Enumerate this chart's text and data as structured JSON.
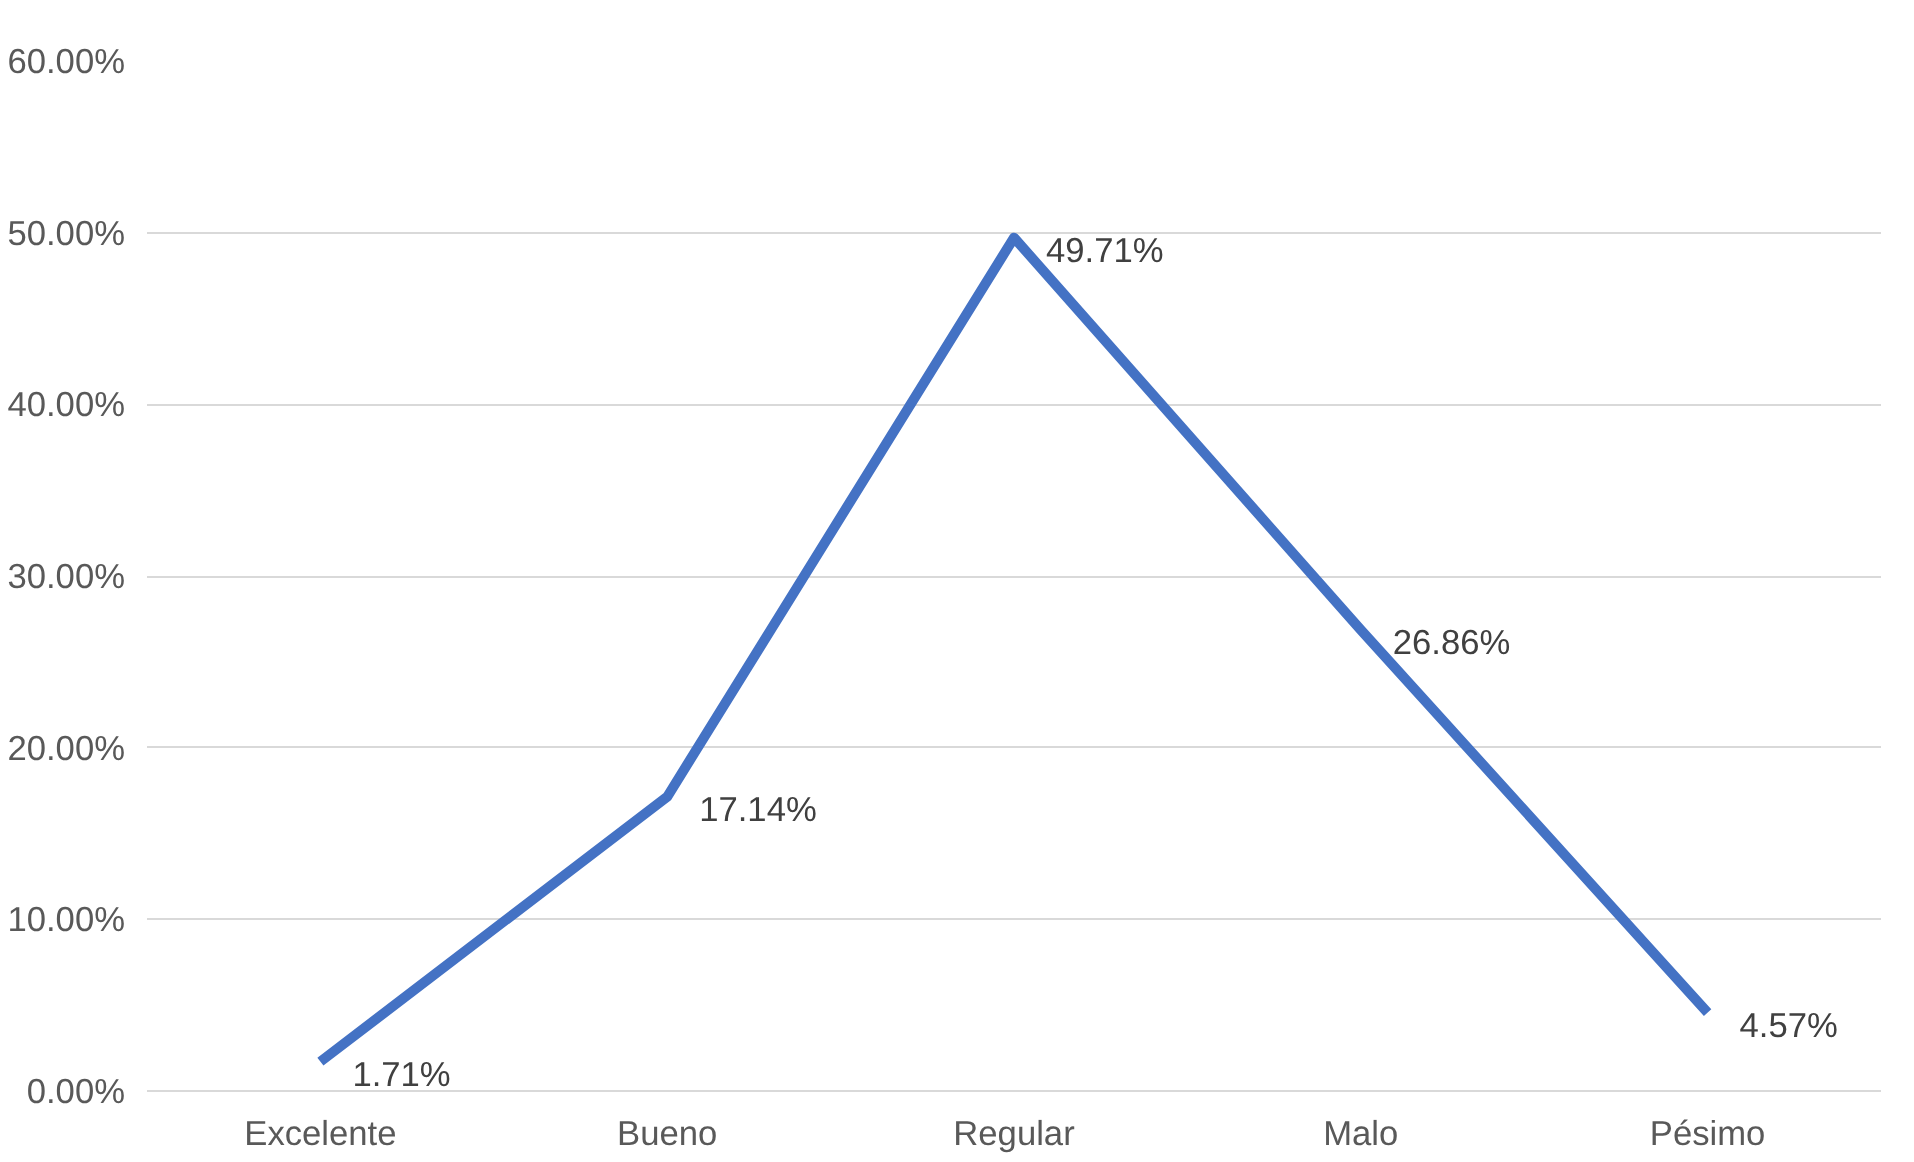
{
  "chart_data": {
    "type": "line",
    "categories": [
      "Excelente",
      "Bueno",
      "Regular",
      "Malo",
      "Pésimo"
    ],
    "values": [
      1.71,
      17.14,
      49.71,
      26.86,
      4.57
    ],
    "value_labels": [
      "1.71%",
      "17.14%",
      "49.71%",
      "26.86%",
      "4.57%"
    ],
    "color": "#4472c4",
    "ylim": [
      0,
      60
    ],
    "yticks": [
      {
        "value": 0,
        "label": "0.00%"
      },
      {
        "value": 10,
        "label": "10.00%"
      },
      {
        "value": 20,
        "label": "20.00%"
      },
      {
        "value": 30,
        "label": "30.00%"
      },
      {
        "value": 40,
        "label": "40.00%"
      },
      {
        "value": 50,
        "label": "50.00%"
      },
      {
        "value": 60,
        "label": "60.00%"
      }
    ],
    "grid": "y",
    "marker": "none",
    "line_style": "solid"
  }
}
